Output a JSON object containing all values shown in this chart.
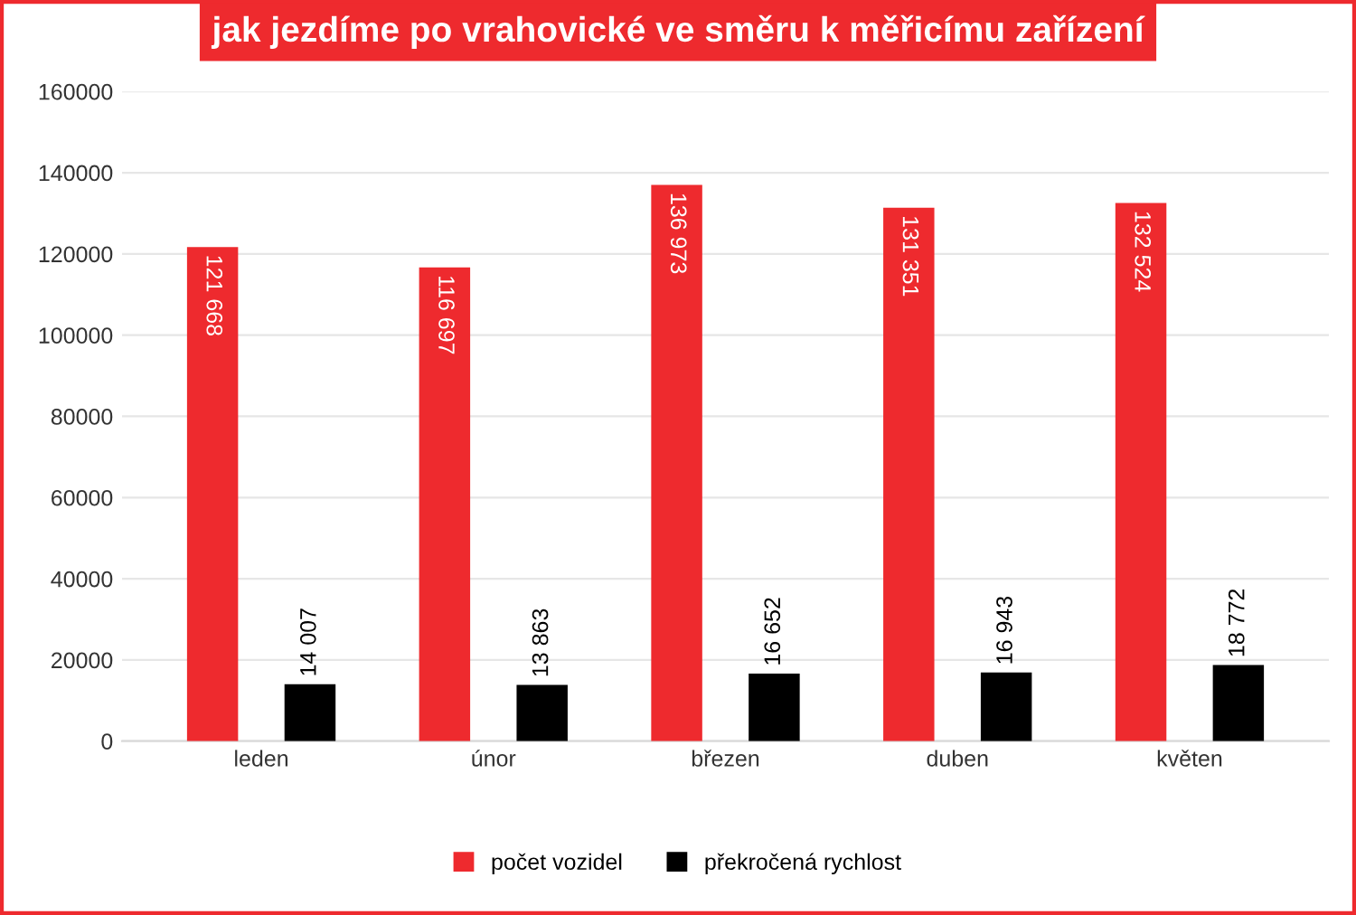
{
  "chart_data": {
    "type": "bar",
    "title": "jak jezdíme po vrahovické ve směru k měřicímu zařízení",
    "categories": [
      "leden",
      "únor",
      "březen",
      "duben",
      "květen"
    ],
    "series": [
      {
        "name": "počet vozidel",
        "color": "#ee2a2e",
        "values": [
          121668,
          116697,
          136973,
          131351,
          132524
        ],
        "value_labels": [
          "121 668",
          "116 697",
          "136 973",
          "131 351",
          "132 524"
        ]
      },
      {
        "name": "překročená rychlost",
        "color": "#000000",
        "values": [
          14007,
          13863,
          16652,
          16943,
          18772
        ],
        "value_labels": [
          "14 007",
          "13 863",
          "16 652",
          "16 943",
          "18 772"
        ]
      }
    ],
    "ylim": [
      0,
      160000
    ],
    "yticks": [
      0,
      20000,
      40000,
      60000,
      80000,
      100000,
      120000,
      140000,
      160000
    ],
    "grid": "y",
    "legend": "bottom"
  }
}
